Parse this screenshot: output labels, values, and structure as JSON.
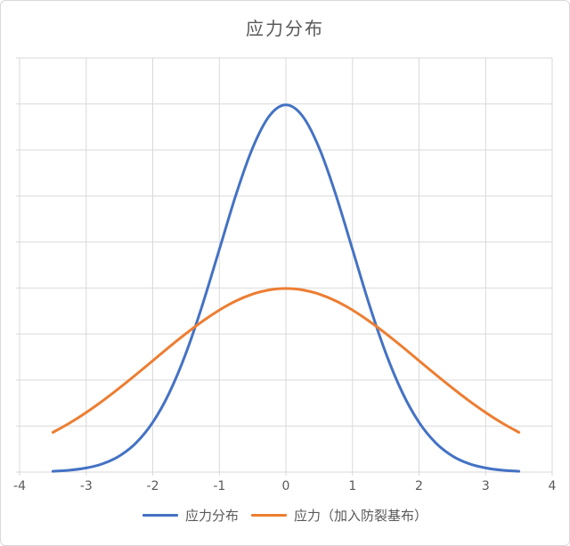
{
  "chart_data": {
    "type": "line",
    "title": "应力分布",
    "xlabel": "",
    "ylabel": "",
    "xlim": [
      -4,
      4
    ],
    "ylim": [
      0,
      0.45
    ],
    "x_gridline_step": 1,
    "y_gridline_step": 0.05,
    "grid": true,
    "legend_position": "bottom",
    "xticks": [
      "-4",
      "-3",
      "-2",
      "-1",
      "0",
      "1",
      "2",
      "3",
      "4"
    ],
    "yticks": [],
    "axis_color": "#d9d9d9",
    "tick_label_color": "#595959",
    "x": [
      -3.5,
      -3.25,
      -3,
      -2.75,
      -2.5,
      -2.25,
      -2,
      -1.75,
      -1.5,
      -1.25,
      -1,
      -0.75,
      -0.5,
      -0.25,
      0,
      0.25,
      0.5,
      0.75,
      1,
      1.25,
      1.5,
      1.75,
      2,
      2.25,
      2.5,
      2.75,
      3,
      3.25,
      3.5
    ],
    "series": [
      {
        "name": "应力分布",
        "color": "#4472C4",
        "values": [
          0.00087,
          0.00203,
          0.00443,
          0.00909,
          0.01753,
          0.03174,
          0.05399,
          0.08628,
          0.12952,
          0.18265,
          0.24197,
          0.30114,
          0.35207,
          0.38667,
          0.39894,
          0.38667,
          0.35207,
          0.30114,
          0.24197,
          0.18265,
          0.12952,
          0.08628,
          0.05399,
          0.03174,
          0.01753,
          0.00909,
          0.00443,
          0.00203,
          0.00087
        ]
      },
      {
        "name": "应力（加入防裂基布）",
        "color": "#ED7D31",
        "values": [
          0.04312,
          0.05327,
          0.06476,
          0.07751,
          0.09132,
          0.10595,
          0.12099,
          0.13603,
          0.15057,
          0.16408,
          0.17603,
          0.18593,
          0.19333,
          0.19792,
          0.19947,
          0.19792,
          0.19333,
          0.18593,
          0.17603,
          0.16408,
          0.15057,
          0.13603,
          0.12099,
          0.10595,
          0.09132,
          0.07751,
          0.06476,
          0.05327,
          0.04312
        ]
      }
    ]
  }
}
